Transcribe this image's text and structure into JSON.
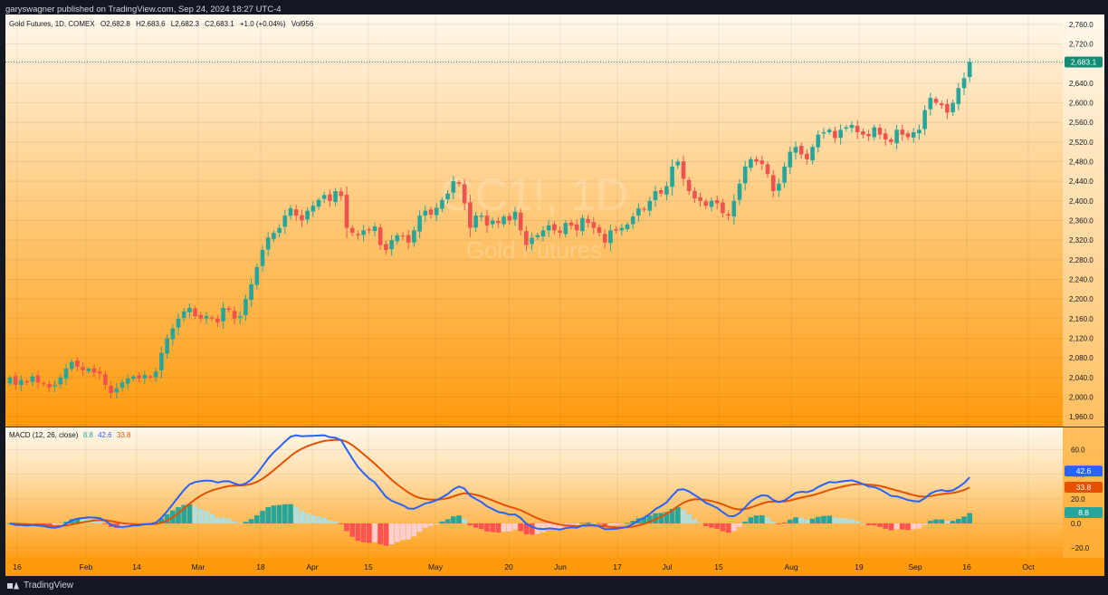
{
  "publisher": "garyswagner published on TradingView.com, Sep 24, 2024 18:27 UTC-4",
  "brand": "TradingView",
  "legend": {
    "symbol": "Gold Futures, 1D, COMEX",
    "open": "O2,682.8",
    "high": "H2,683.6",
    "low": "L2,682.3",
    "close": "C2,683.1",
    "change": "+1.0 (+0.04%)",
    "volume": "Vol956"
  },
  "macd_legend": {
    "label": "MACD (12, 26, close)",
    "hist": "8.8",
    "macd": "42.6",
    "signal": "33.8"
  },
  "watermark": {
    "ticker": "GC1!, 1D",
    "name": "Gold Futures"
  },
  "colors": {
    "up": "#26a69a",
    "down": "#ef5350",
    "macd_line": "#2962ff",
    "signal_line": "#e65100",
    "hist_up_strong": "#26a69a",
    "hist_up_weak": "#b2dfdb",
    "hist_down_strong": "#ff5252",
    "hist_down_weak": "#ffcdd2",
    "last_price_tag": "#138d75"
  },
  "chart_data": [
    {
      "type": "candlestick",
      "title": "Gold Futures, 1D, COMEX",
      "ylim": [
        1940,
        2780
      ],
      "y_ticks": [
        "1,960.0",
        "2,000.0",
        "2,040.0",
        "2,080.0",
        "2,120.0",
        "2,160.0",
        "2,200.0",
        "2,240.0",
        "2,280.0",
        "2,320.0",
        "2,360.0",
        "2,400.0",
        "2,440.0",
        "2,480.0",
        "2,520.0",
        "2,560.0",
        "2,600.0",
        "2,640.0",
        "2,680.0",
        "2,720.0",
        "2,760.0"
      ],
      "x_ticks": [
        "16",
        "Feb",
        "14",
        "Mar",
        "18",
        "Apr",
        "15",
        "May",
        "20",
        "Jun",
        "17",
        "Jul",
        "15",
        "Aug",
        "19",
        "Sep",
        "16",
        "Oct"
      ],
      "last_price": "2,683.1",
      "closes": [
        2040,
        2025,
        2035,
        2030,
        2042,
        2030,
        2028,
        2020,
        2025,
        2040,
        2058,
        2072,
        2062,
        2055,
        2058,
        2050,
        2048,
        2025,
        2008,
        2018,
        2030,
        2038,
        2042,
        2038,
        2045,
        2040,
        2052,
        2090,
        2120,
        2140,
        2160,
        2175,
        2182,
        2165,
        2160,
        2165,
        2160,
        2152,
        2182,
        2178,
        2160,
        2165,
        2200,
        2230,
        2265,
        2300,
        2325,
        2335,
        2345,
        2370,
        2385,
        2370,
        2360,
        2380,
        2390,
        2402,
        2412,
        2400,
        2420,
        2410,
        2345,
        2335,
        2330,
        2340,
        2340,
        2348,
        2310,
        2300,
        2320,
        2330,
        2328,
        2315,
        2340,
        2370,
        2380,
        2372,
        2386,
        2402,
        2415,
        2440,
        2435,
        2395,
        2345,
        2370,
        2370,
        2350,
        2360,
        2355,
        2368,
        2360,
        2378,
        2340,
        2310,
        2325,
        2330,
        2340,
        2350,
        2340,
        2335,
        2355,
        2350,
        2340,
        2365,
        2355,
        2345,
        2335,
        2315,
        2340,
        2340,
        2345,
        2352,
        2368,
        2385,
        2382,
        2400,
        2420,
        2415,
        2430,
        2470,
        2480,
        2445,
        2420,
        2405,
        2400,
        2390,
        2400,
        2395,
        2375,
        2370,
        2400,
        2435,
        2470,
        2485,
        2480,
        2475,
        2455,
        2420,
        2435,
        2470,
        2500,
        2510,
        2495,
        2485,
        2510,
        2535,
        2540,
        2545,
        2528,
        2545,
        2550,
        2555,
        2540,
        2535,
        2532,
        2550,
        2535,
        2525,
        2520,
        2545,
        2535,
        2530,
        2540,
        2545,
        2585,
        2610,
        2600,
        2595,
        2580,
        2600,
        2630,
        2650,
        2683.1
      ]
    },
    {
      "type": "line",
      "title": "MACD (12, 26, close)",
      "ylim": [
        -28,
        78
      ],
      "y_ticks": [
        "60.0",
        "40.0",
        "20.0",
        "0.0",
        "−20.0"
      ],
      "series": [
        {
          "name": "MACD",
          "last": "42.6"
        },
        {
          "name": "Signal",
          "last": "33.8"
        },
        {
          "name": "Histogram",
          "last": "8.8"
        }
      ]
    }
  ]
}
